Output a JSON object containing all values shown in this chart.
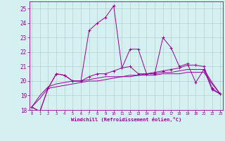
{
  "xlabel": "Windchill (Refroidissement éolien,°C)",
  "x": [
    0,
    1,
    2,
    3,
    4,
    5,
    6,
    7,
    8,
    9,
    10,
    11,
    12,
    13,
    14,
    15,
    16,
    17,
    18,
    19,
    20,
    21,
    22,
    23
  ],
  "line1": [
    18.2,
    17.9,
    19.5,
    20.5,
    20.4,
    20.0,
    20.0,
    23.5,
    24.0,
    24.4,
    25.2,
    20.9,
    22.2,
    22.2,
    20.5,
    20.5,
    23.0,
    22.3,
    21.0,
    21.2,
    19.9,
    20.8,
    19.4,
    19.1
  ],
  "line2": [
    18.2,
    17.9,
    19.5,
    20.5,
    20.4,
    20.0,
    20.0,
    20.3,
    20.5,
    20.5,
    20.7,
    20.9,
    21.0,
    20.5,
    20.5,
    20.6,
    20.7,
    20.8,
    20.9,
    21.1,
    21.1,
    21.0,
    19.5,
    19.1
  ],
  "line3": [
    18.2,
    19.0,
    19.6,
    19.8,
    19.9,
    20.0,
    20.0,
    20.1,
    20.2,
    20.3,
    20.3,
    20.3,
    20.4,
    20.4,
    20.5,
    20.5,
    20.6,
    20.6,
    20.7,
    20.8,
    20.8,
    20.8,
    19.9,
    19.1
  ],
  "line4": [
    18.2,
    18.8,
    19.5,
    19.6,
    19.7,
    19.8,
    19.9,
    20.0,
    20.0,
    20.1,
    20.2,
    20.3,
    20.3,
    20.4,
    20.4,
    20.4,
    20.5,
    20.5,
    20.5,
    20.6,
    20.6,
    20.6,
    19.8,
    19.1
  ],
  "line_color": "#990099",
  "bg_color": "#d4f0f0",
  "grid_color": "#b0c8c8",
  "ylim": [
    18,
    25.5
  ],
  "yticks": [
    18,
    19,
    20,
    21,
    22,
    23,
    24,
    25
  ],
  "xticks": [
    0,
    1,
    2,
    3,
    4,
    5,
    6,
    7,
    8,
    9,
    10,
    11,
    12,
    13,
    14,
    15,
    16,
    17,
    18,
    19,
    20,
    21,
    22,
    23
  ],
  "figsize": [
    3.2,
    2.0
  ],
  "dpi": 100
}
